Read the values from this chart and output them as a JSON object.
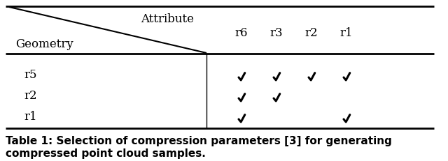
{
  "title_line1": "Table 1: Selection of compression parameters [3] for generating",
  "title_line2": "compressed point cloud samples.",
  "attribute_label": "Attribute",
  "geometry_label": "Geometry",
  "col_headers": [
    "r6",
    "r3",
    "r2",
    "r1"
  ],
  "row_headers": [
    "r5",
    "r2",
    "r1"
  ],
  "checks": {
    "r5": [
      true,
      true,
      true,
      true
    ],
    "r2": [
      true,
      true,
      false,
      false
    ],
    "r1": [
      true,
      false,
      false,
      true
    ]
  },
  "bg_color": "#ffffff",
  "text_color": "#000000",
  "fontsize_table": 12,
  "fontsize_caption": 11,
  "fig_width": 6.4,
  "fig_height": 2.32,
  "dpi": 100
}
